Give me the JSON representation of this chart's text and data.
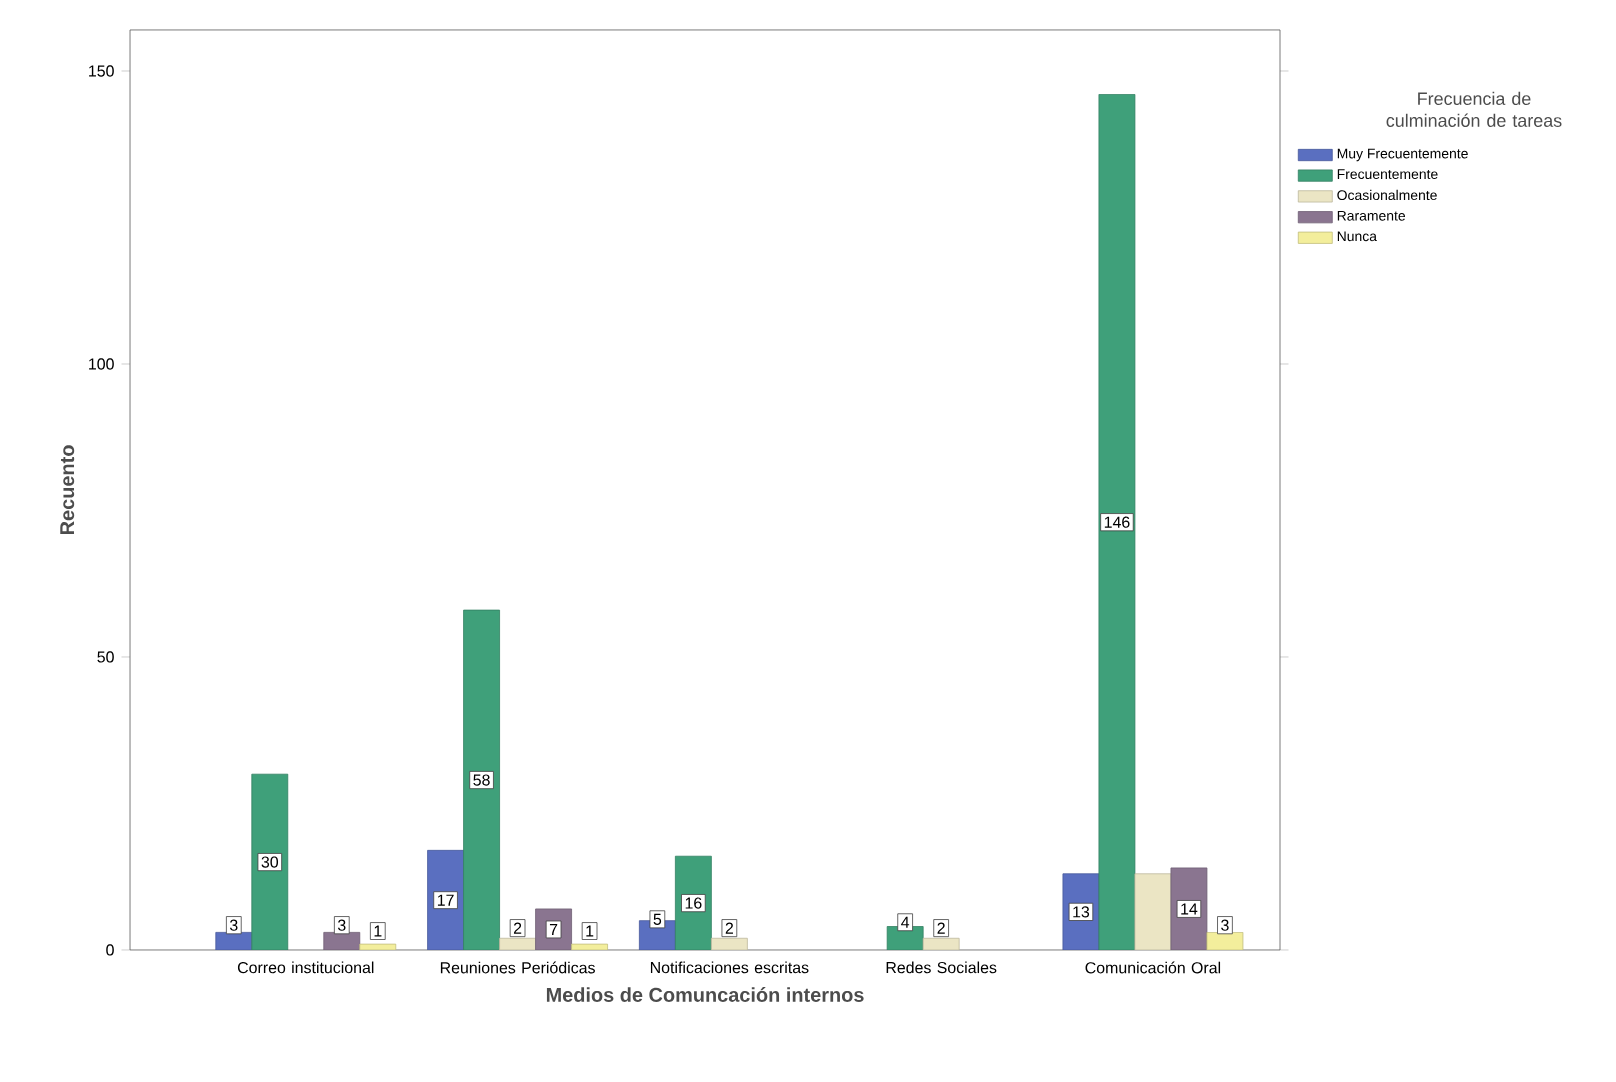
{
  "chart_data": {
    "type": "bar",
    "xlabel": "Medios de Comuncación internos",
    "ylabel": "Recuento",
    "legend_title": "Frecuencia de culminación de tareas",
    "legend": "right",
    "categories": [
      "Correo institucional",
      "Reuniones Periódicas",
      "Notificaciones escritas",
      "Redes Sociales",
      "Comunicación Oral"
    ],
    "ylim": [
      0,
      157
    ],
    "yticks": [
      0,
      50,
      100,
      150
    ],
    "series": [
      {
        "name": "Muy Frecuentemente",
        "color": "#5a6fc0",
        "values": [
          3,
          17,
          5,
          null,
          13
        ],
        "value_labels": [
          "3",
          "17",
          "5",
          null,
          "13"
        ]
      },
      {
        "name": "Frecuentemente",
        "color": "#3fa07a",
        "values": [
          30,
          58,
          16,
          4,
          146
        ],
        "value_labels": [
          "30",
          "58",
          "16",
          "4",
          "146"
        ]
      },
      {
        "name": "Ocasionalmente",
        "color": "#ebe5c4",
        "values": [
          null,
          2,
          2,
          2,
          13
        ],
        "value_labels": [
          null,
          "2",
          "2",
          "2",
          null
        ]
      },
      {
        "name": "Raramente",
        "color": "#8a7590",
        "values": [
          3,
          7,
          null,
          null,
          14
        ],
        "value_labels": [
          "3",
          "7",
          null,
          null,
          "14"
        ]
      },
      {
        "name": "Nunca",
        "color": "#f3ee9c",
        "values": [
          1,
          1,
          null,
          null,
          3
        ],
        "value_labels": [
          "1",
          "1",
          null,
          null,
          "3"
        ]
      }
    ]
  }
}
